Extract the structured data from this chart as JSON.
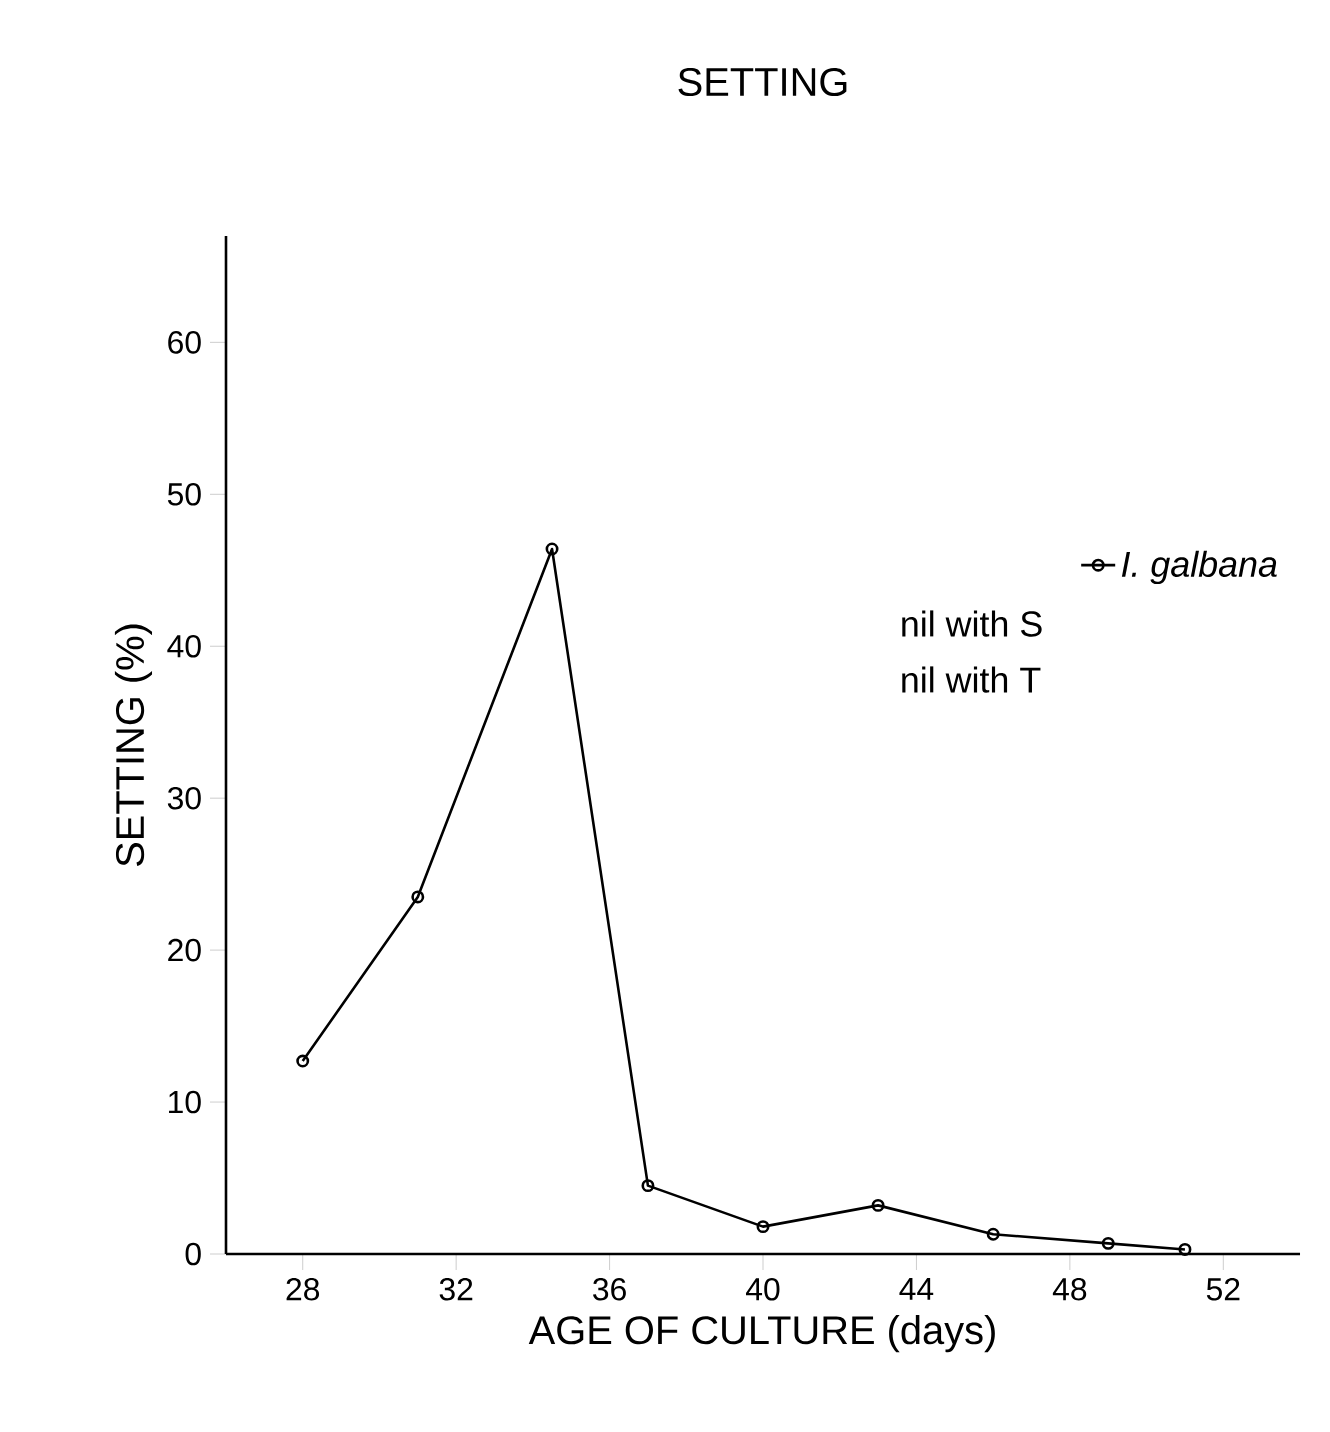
{
  "chart_data": {
    "type": "line",
    "title": "SETTING",
    "xlabel": "AGE OF CULTURE (days)",
    "ylabel": "SETTING (%)",
    "x": [
      28,
      31,
      34.5,
      37,
      40,
      43,
      46,
      49,
      51
    ],
    "series": [
      {
        "name": "I. galbana",
        "color": "#000000",
        "values": [
          12.7,
          23.5,
          46.4,
          4.5,
          1.8,
          3.2,
          1.3,
          0.7,
          0.3
        ]
      }
    ],
    "xlim": [
      26,
      54
    ],
    "ylim": [
      0,
      67
    ],
    "xticks": [
      28,
      32,
      36,
      40,
      44,
      48,
      52
    ],
    "yticks": [
      0,
      10,
      20,
      30,
      40,
      50,
      60
    ],
    "marker": "circle",
    "line_style": "solid",
    "grid": false,
    "legend": "right",
    "annotations": [
      "nil with S",
      "nil with T"
    ]
  }
}
